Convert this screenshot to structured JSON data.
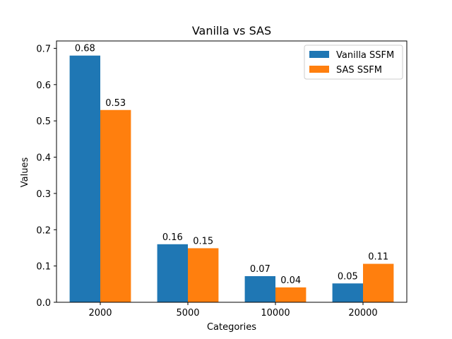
{
  "chart_data": {
    "type": "bar",
    "title": "Vanilla vs SAS",
    "xlabel": "Categories",
    "ylabel": "Values",
    "categories": [
      "2000",
      "5000",
      "10000",
      "20000"
    ],
    "ylim": [
      0,
      0.7
    ],
    "yticks": [
      "0.0",
      "0.1",
      "0.2",
      "0.3",
      "0.4",
      "0.5",
      "0.6",
      "0.7"
    ],
    "grid": false,
    "legend_position": "top-right",
    "series": [
      {
        "name": "Vanilla SSFM",
        "color": "#1f77b4",
        "values": [
          0.68,
          0.16,
          0.072,
          0.052
        ],
        "labels": [
          "0.68",
          "0.16",
          "0.07",
          "0.05"
        ]
      },
      {
        "name": "SAS SSFM",
        "color": "#ff7f0e",
        "values": [
          0.53,
          0.149,
          0.041,
          0.106
        ],
        "labels": [
          "0.53",
          "0.15",
          "0.04",
          "0.11"
        ]
      }
    ]
  }
}
